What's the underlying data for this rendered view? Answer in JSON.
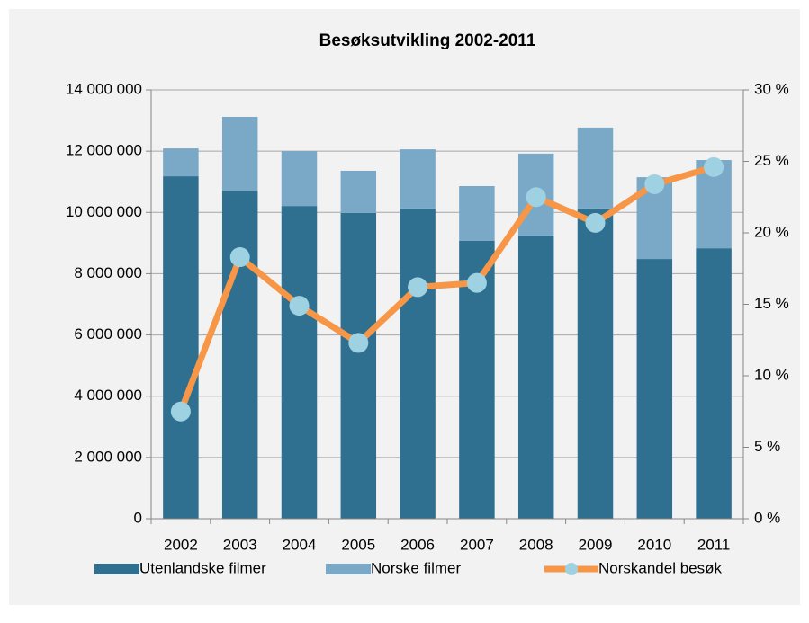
{
  "chart_data": {
    "type": "bar-line",
    "title": "Besøksutvikling 2002-2011",
    "categories": [
      "2002",
      "2003",
      "2004",
      "2005",
      "2006",
      "2007",
      "2008",
      "2009",
      "2010",
      "2011"
    ],
    "series": [
      {
        "name": "Utenlandske filmer",
        "type": "bar",
        "color": "#2f6f8f",
        "values": [
          11180000,
          10710000,
          10210000,
          9980000,
          10130000,
          9070000,
          9250000,
          10130000,
          8480000,
          8830000
        ]
      },
      {
        "name": "Norske filmer",
        "type": "bar",
        "color": "#7aa9c7",
        "values": [
          910000,
          2410000,
          1790000,
          1380000,
          1930000,
          1790000,
          2670000,
          2640000,
          2670000,
          2880000
        ]
      },
      {
        "name": "Norskandel besøk",
        "type": "line",
        "axis": "y2",
        "color": "#f79646",
        "marker_color": "#9ed2e2",
        "values": [
          7.5,
          18.3,
          14.9,
          12.3,
          16.2,
          16.5,
          22.5,
          20.7,
          23.4,
          24.6
        ]
      }
    ],
    "stacked": true,
    "ylim": [
      0,
      14000000
    ],
    "yticks": [
      0,
      {
        "value": 2000000,
        "label": "2 000 000"
      },
      {
        "value": 4000000,
        "label": "4 000 000"
      },
      {
        "value": 6000000,
        "label": "6 000 000"
      },
      {
        "value": 8000000,
        "label": "8 000 000"
      },
      {
        "value": 10000000,
        "label": "10 000 000"
      },
      {
        "value": 12000000,
        "label": "12 000 000"
      },
      {
        "value": 14000000,
        "label": "14 000 000"
      }
    ],
    "y2lim": [
      0,
      30
    ],
    "y2ticks": [
      {
        "value": 0,
        "label": "0 %"
      },
      {
        "value": 5,
        "label": "5 %"
      },
      {
        "value": 10,
        "label": "10 %"
      },
      {
        "value": 15,
        "label": "15 %"
      },
      {
        "value": 20,
        "label": "20 %"
      },
      {
        "value": 25,
        "label": "25 %"
      },
      {
        "value": 30,
        "label": "30 %"
      }
    ],
    "grid": true,
    "legend": "bottom"
  }
}
